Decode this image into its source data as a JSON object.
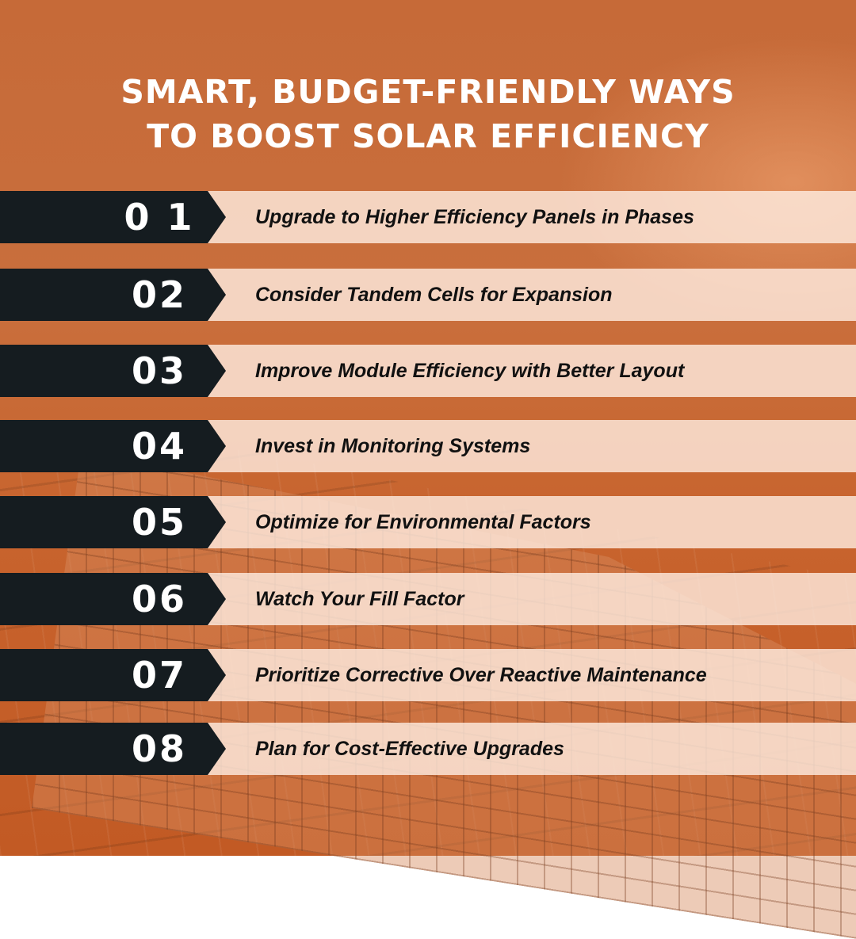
{
  "title": {
    "line1": "SMART, BUDGET-FRIENDLY WAYS",
    "line2": "TO BOOST SOLAR EFFICIENCY"
  },
  "colors": {
    "background": "#c8642e",
    "tab": "#151c20",
    "band": "#ffeee2",
    "title_text": "#ffffff",
    "item_text": "#111111"
  },
  "items": [
    {
      "number": "0 1",
      "text": "Upgrade to Higher Efficiency Panels in Phases"
    },
    {
      "number": "02",
      "text": "Consider Tandem Cells for Expansion"
    },
    {
      "number": "03",
      "text": "Improve Module Efficiency with Better Layout"
    },
    {
      "number": "04",
      "text": "Invest in Monitoring Systems"
    },
    {
      "number": "05",
      "text": "Optimize for Environmental Factors"
    },
    {
      "number": "06",
      "text": "Watch Your Fill Factor"
    },
    {
      "number": "07",
      "text": "Prioritize Corrective Over Reactive Maintenance"
    },
    {
      "number": "08",
      "text": "Plan for Cost-Effective Upgrades"
    }
  ]
}
